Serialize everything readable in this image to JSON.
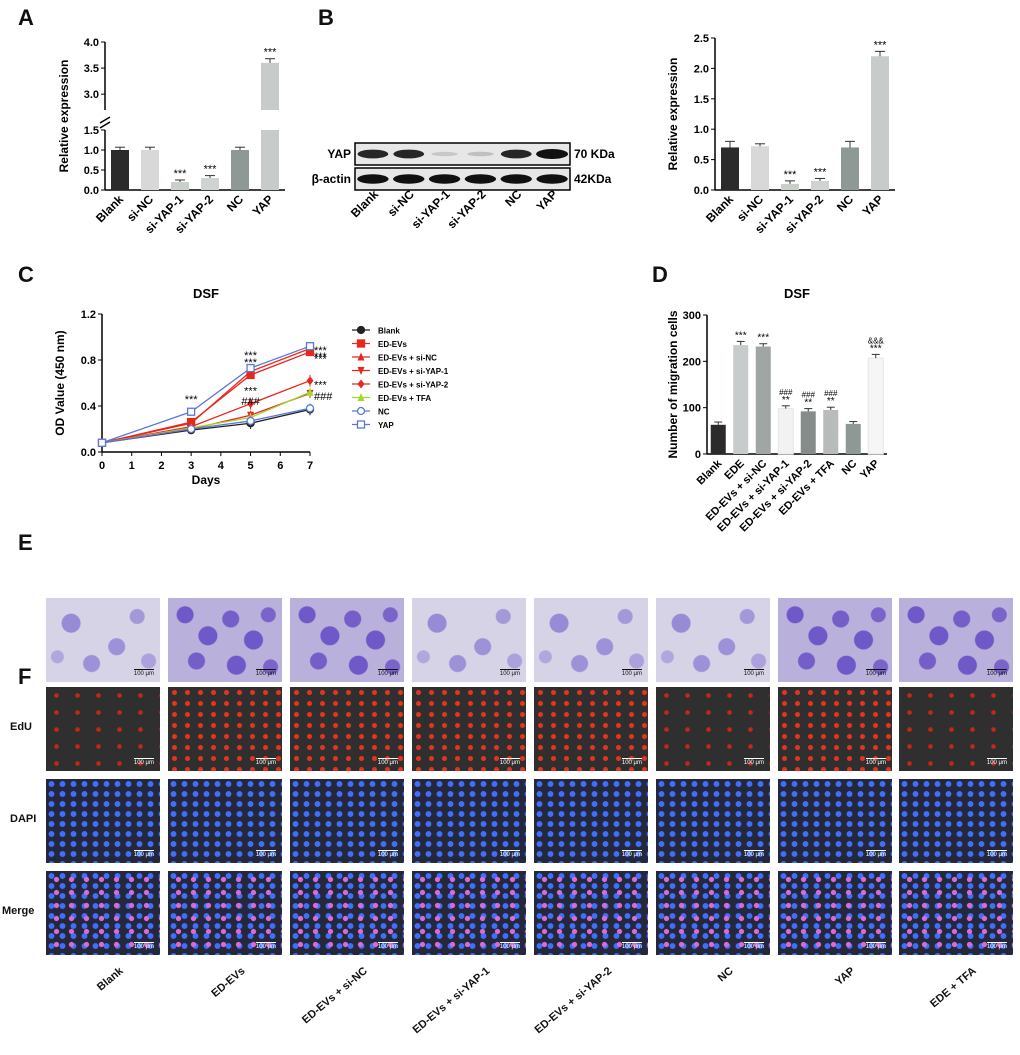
{
  "panel_letters": {
    "A": "A",
    "B": "B",
    "C": "C",
    "D": "D",
    "E": "E",
    "F": "F"
  },
  "chart_data": [
    {
      "id": "A",
      "type": "bar",
      "title": "",
      "ylabel": "Relative expression",
      "categories": [
        "Blank",
        "si-NC",
        "si-YAP-1",
        "si-YAP-2",
        "NC",
        "YAP"
      ],
      "values": [
        1.0,
        1.0,
        0.2,
        0.3,
        1.0,
        3.6
      ],
      "errors": [
        0.07,
        0.07,
        0.05,
        0.06,
        0.07,
        0.08
      ],
      "significance": [
        "",
        "",
        "***",
        "***",
        "",
        "***"
      ],
      "yaxis_broken": true,
      "lower_range": [
        0,
        1.5
      ],
      "upper_range": [
        2.85,
        4.0
      ],
      "yticks_lower": [
        "0.0",
        "0.5",
        "1.0",
        "1.5"
      ],
      "yticks_upper": [
        "3.0",
        "3.5",
        "4.0"
      ],
      "colors": [
        "#2b2b2b",
        "#d8d8d8",
        "#c9cfc9",
        "#d0d4d0",
        "#8e9895",
        "#c7cccb"
      ]
    },
    {
      "id": "B_blot",
      "type": "western_blot",
      "lanes": [
        "Blank",
        "si-NC",
        "si-YAP-1",
        "si-YAP-2",
        "NC",
        "YAP"
      ],
      "rows": [
        {
          "label": "YAP",
          "size": "70 KDa",
          "intensity": [
            0.8,
            0.8,
            0.05,
            0.08,
            0.8,
            1.0
          ]
        },
        {
          "label": "β-actin",
          "size": "42KDa",
          "intensity": [
            0.9,
            0.9,
            0.9,
            0.9,
            0.9,
            0.9
          ]
        }
      ]
    },
    {
      "id": "B_bar",
      "type": "bar",
      "title": "",
      "ylabel": "Relative expression",
      "categories": [
        "Blank",
        "si-NC",
        "si-YAP-1",
        "si-YAP-2",
        "NC",
        "YAP"
      ],
      "values": [
        0.7,
        0.72,
        0.1,
        0.15,
        0.7,
        2.2
      ],
      "errors": [
        0.1,
        0.04,
        0.05,
        0.04,
        0.1,
        0.08
      ],
      "significance": [
        "",
        "",
        "***",
        "***",
        "",
        "***"
      ],
      "ylim": [
        0,
        2.5
      ],
      "yticks": [
        "0.0",
        "0.5",
        "1.0",
        "1.5",
        "2.0",
        "2.5"
      ],
      "colors": [
        "#2b2b2b",
        "#d8d8d8",
        "#c9cfc9",
        "#d0d4d0",
        "#8e9895",
        "#c7cccb"
      ]
    },
    {
      "id": "C",
      "type": "line",
      "title": "DSF",
      "xlabel": "Days",
      "ylabel": "OD Value (450 nm)",
      "x": [
        0,
        3,
        5,
        7
      ],
      "xlim": [
        0,
        7
      ],
      "ylim": [
        0,
        1.2
      ],
      "xticks": [
        "0",
        "1",
        "2",
        "3",
        "4",
        "5",
        "6",
        "7"
      ],
      "yticks": [
        "0.0",
        "0.4",
        "0.8",
        "1.2"
      ],
      "series": [
        {
          "name": "Blank",
          "values": [
            0.08,
            0.19,
            0.25,
            0.37
          ],
          "errors": [
            0.02,
            0.02,
            0.05,
            0.05
          ],
          "color": "#222222",
          "marker": "circle-filled"
        },
        {
          "name": "ED-EVs",
          "values": [
            0.08,
            0.26,
            0.67,
            0.87
          ],
          "errors": [
            0.02,
            0.02,
            0.03,
            0.03
          ],
          "color": "#e8271c",
          "marker": "square-filled"
        },
        {
          "name": "ED-EVs + si-NC",
          "values": [
            0.08,
            0.25,
            0.7,
            0.9
          ],
          "errors": [
            0.02,
            0.02,
            0.03,
            0.03
          ],
          "color": "#e8271c",
          "marker": "triangle-filled"
        },
        {
          "name": "ED-EVs + si-YAP-1",
          "values": [
            0.08,
            0.2,
            0.32,
            0.51
          ],
          "errors": [
            0.02,
            0.02,
            0.04,
            0.04
          ],
          "color": "#e8271c",
          "marker": "triangle-down-filled"
        },
        {
          "name": "ED-EVs + si-YAP-2",
          "values": [
            0.08,
            0.22,
            0.42,
            0.62
          ],
          "errors": [
            0.02,
            0.02,
            0.05,
            0.05
          ],
          "color": "#e8271c",
          "marker": "diamond-filled"
        },
        {
          "name": "ED-EVs + TFA",
          "values": [
            0.08,
            0.21,
            0.3,
            0.52
          ],
          "errors": [
            0.02,
            0.02,
            0.04,
            0.04
          ],
          "color": "#9ed92f",
          "marker": "triangle-filled"
        },
        {
          "name": "NC",
          "values": [
            0.08,
            0.2,
            0.27,
            0.38
          ],
          "errors": [
            0.02,
            0.02,
            0.04,
            0.04
          ],
          "color": "#5b78d6",
          "marker": "circle-open"
        },
        {
          "name": "YAP",
          "values": [
            0.08,
            0.35,
            0.73,
            0.92
          ],
          "errors": [
            0.02,
            0.02,
            0.02,
            0.02
          ],
          "color": "#5b78d6",
          "marker": "square-open"
        }
      ],
      "annotations": [
        {
          "x": 3,
          "y": 0.35,
          "text": "***"
        },
        {
          "x": 5,
          "y": 0.73,
          "text": "***"
        },
        {
          "x": 5,
          "y": 0.67,
          "text": "***"
        },
        {
          "x": 5,
          "y": 0.42,
          "text": "***"
        },
        {
          "x": 5,
          "y": 0.33,
          "text": "###"
        },
        {
          "x": 7,
          "y": 0.92,
          "text": "***"
        },
        {
          "x": 7,
          "y": 0.87,
          "text": "***"
        },
        {
          "x": 7,
          "y": 0.85,
          "text": "***"
        },
        {
          "x": 7,
          "y": 0.62,
          "text": "***"
        },
        {
          "x": 7,
          "y": 0.52,
          "text": "###"
        }
      ]
    },
    {
      "id": "D",
      "type": "bar",
      "title": "DSF",
      "ylabel": "Number of migration cells",
      "categories": [
        "Blank",
        "EDE",
        "ED-EVs + si-NC",
        "ED-EVs + si-YAP-1",
        "ED-EVs + si-YAP-2",
        "ED-EVs + TFA",
        "NC",
        "YAP"
      ],
      "values": [
        63,
        235,
        232,
        98,
        92,
        95,
        65,
        207
      ],
      "errors": [
        6,
        8,
        6,
        6,
        6,
        6,
        5,
        8
      ],
      "significance": [
        "",
        "***",
        "***",
        "###\n**",
        "###\n**",
        "###\n**",
        "",
        "&&&\n***"
      ],
      "ylim": [
        0,
        300
      ],
      "yticks": [
        "0",
        "100",
        "200",
        "300"
      ],
      "colors": [
        "#2b2b2b",
        "#c8cbcb",
        "#9fa6a4",
        "#f2f2f2",
        "#858c89",
        "#b7bcbb",
        "#8e9895",
        "#f6f6f6"
      ]
    }
  ],
  "micrograph_E": {
    "labels": [
      "100 μm",
      "100 μm",
      "100 μm",
      "100 μm",
      "100 μm",
      "100 μm",
      "100 μm",
      "100 μm"
    ]
  },
  "micrograph_F": {
    "row_labels": [
      "EdU",
      "DAPI",
      "Merge"
    ],
    "scale_bar": "100 μm"
  },
  "group_labels": [
    "Blank",
    "ED-EVs",
    "ED-EVs + si-NC",
    "ED-EVs + si-YAP-1",
    "ED-EVs + si-YAP-2",
    "NC",
    "YAP",
    "EDE + TFA"
  ]
}
